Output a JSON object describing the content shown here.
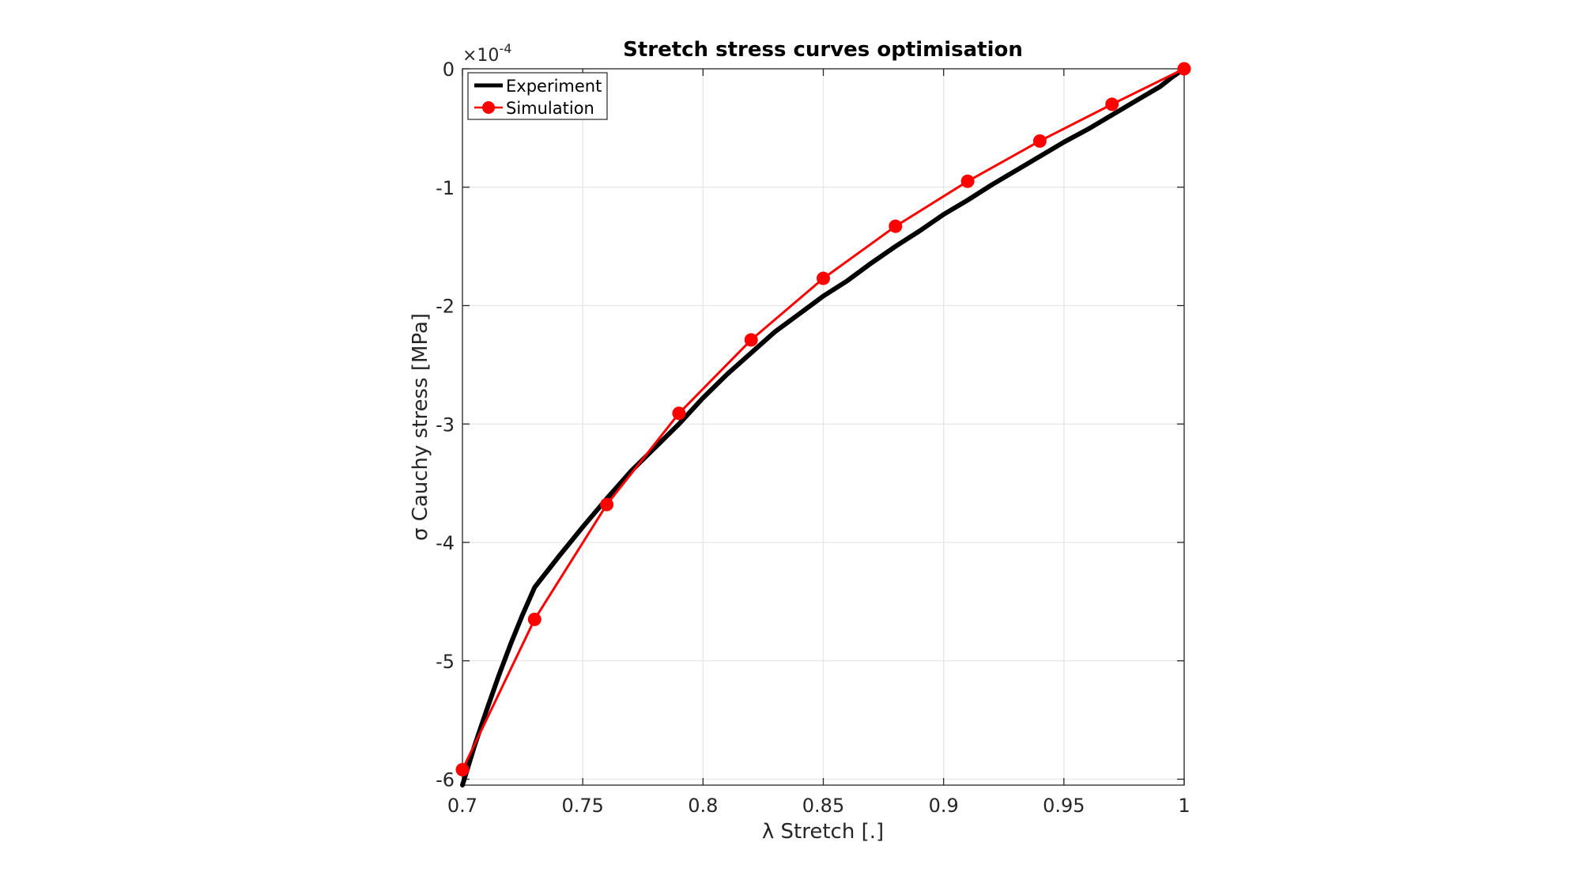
{
  "chart_data": {
    "type": "line",
    "title": "Stretch stress curves optimisation",
    "xlabel": "λ Stretch [.]",
    "ylabel": "σ Cauchy stress [MPa]",
    "y_exponent_base": "×10",
    "y_exponent_power": "-4",
    "xlim": [
      0.7,
      1.0
    ],
    "ylim": [
      -6.05,
      0
    ],
    "xticks": [
      0.7,
      0.75,
      0.8,
      0.85,
      0.9,
      0.95,
      1.0
    ],
    "xtick_labels": [
      "0.7",
      "0.75",
      "0.8",
      "0.85",
      "0.9",
      "0.95",
      "1"
    ],
    "yticks": [
      0,
      -1,
      -2,
      -3,
      -4,
      -5,
      -6
    ],
    "ytick_labels": [
      "0",
      "-1",
      "-2",
      "-3",
      "-4",
      "-5",
      "-6"
    ],
    "grid": true,
    "legend_position": "top-left",
    "series": [
      {
        "name": "Experiment",
        "color": "#000000",
        "marker": "none",
        "x": [
          0.7,
          0.705,
          0.71,
          0.715,
          0.72,
          0.725,
          0.73,
          0.74,
          0.75,
          0.76,
          0.77,
          0.78,
          0.79,
          0.8,
          0.81,
          0.82,
          0.83,
          0.84,
          0.85,
          0.86,
          0.87,
          0.88,
          0.89,
          0.9,
          0.91,
          0.92,
          0.93,
          0.94,
          0.95,
          0.96,
          0.97,
          0.98,
          0.99,
          0.995,
          1.0
        ],
        "y": [
          -6.05,
          -5.72,
          -5.42,
          -5.13,
          -4.86,
          -4.61,
          -4.38,
          -4.12,
          -3.87,
          -3.63,
          -3.4,
          -3.2,
          -3.0,
          -2.78,
          -2.58,
          -2.4,
          -2.22,
          -2.07,
          -1.92,
          -1.79,
          -1.64,
          -1.5,
          -1.37,
          -1.23,
          -1.11,
          -0.98,
          -0.86,
          -0.74,
          -0.62,
          -0.51,
          -0.39,
          -0.27,
          -0.15,
          -0.07,
          0.0
        ]
      },
      {
        "name": "Simulation",
        "color": "#ff0000",
        "marker": "circle",
        "x": [
          0.7,
          0.73,
          0.76,
          0.79,
          0.82,
          0.85,
          0.88,
          0.91,
          0.94,
          0.97,
          1.0
        ],
        "y": [
          -5.92,
          -4.65,
          -3.68,
          -2.91,
          -2.29,
          -1.77,
          -1.33,
          -0.95,
          -0.61,
          -0.3,
          0.0
        ]
      }
    ]
  }
}
